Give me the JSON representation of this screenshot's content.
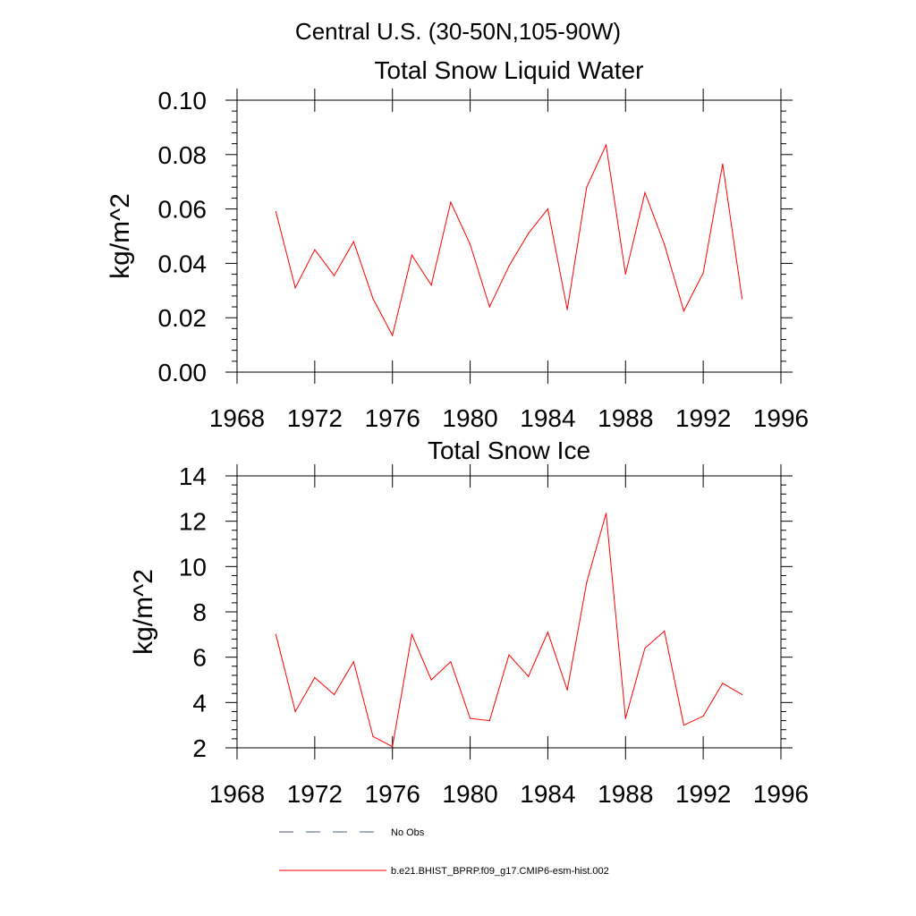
{
  "page_title": "Central U.S. (30-50N,105-90W)",
  "colors": {
    "model_line": "#ff0000",
    "obs_line": "#4a5a8a",
    "axis": "#000000"
  },
  "legend": {
    "entries": [
      {
        "label": "No Obs",
        "style": "dashed"
      },
      {
        "label": "b.e21.BHIST_BPRP.f09_g17.CMIP6-esm-hist.002",
        "style": "solid"
      }
    ]
  },
  "chart_data": [
    {
      "type": "line",
      "title": "Total Snow Liquid Water",
      "xlabel": "",
      "ylabel": "kg/m^2",
      "xlim": [
        1968,
        1996
      ],
      "ylim": [
        0,
        0.1
      ],
      "x_ticks": [
        1968,
        1972,
        1976,
        1980,
        1984,
        1988,
        1992,
        1996
      ],
      "y_ticks": [
        0,
        0.02,
        0.04,
        0.06,
        0.08,
        0.1
      ],
      "y_tick_labels": [
        "0.00",
        "0.02",
        "0.04",
        "0.06",
        "0.08",
        "0.10"
      ],
      "x": [
        1970,
        1971,
        1972,
        1973,
        1974,
        1975,
        1976,
        1977,
        1978,
        1979,
        1980,
        1981,
        1982,
        1983,
        1984,
        1985,
        1986,
        1987,
        1988,
        1989,
        1990,
        1991,
        1992,
        1993,
        1994
      ],
      "series": [
        {
          "name": "b.e21.BHIST_BPRP.f09_g17.CMIP6-esm-hist.002",
          "values": [
            0.059,
            0.031,
            0.045,
            0.0355,
            0.048,
            0.027,
            0.0135,
            0.043,
            0.032,
            0.0625,
            0.047,
            0.024,
            0.039,
            0.051,
            0.06,
            0.023,
            0.068,
            0.0835,
            0.036,
            0.066,
            0.047,
            0.0225,
            0.0365,
            0.0765,
            0.027
          ]
        }
      ]
    },
    {
      "type": "line",
      "title": "Total Snow Ice",
      "xlabel": "",
      "ylabel": "kg/m^2",
      "xlim": [
        1968,
        1996
      ],
      "ylim": [
        2,
        14
      ],
      "x_ticks": [
        1968,
        1972,
        1976,
        1980,
        1984,
        1988,
        1992,
        1996
      ],
      "y_ticks": [
        2,
        4,
        6,
        8,
        10,
        12,
        14
      ],
      "y_tick_labels": [
        "2",
        "4",
        "6",
        "8",
        "10",
        "12",
        "14"
      ],
      "x": [
        1970,
        1971,
        1972,
        1973,
        1974,
        1975,
        1976,
        1977,
        1978,
        1979,
        1980,
        1981,
        1982,
        1983,
        1984,
        1985,
        1986,
        1987,
        1988,
        1989,
        1990,
        1991,
        1992,
        1993,
        1994
      ],
      "series": [
        {
          "name": "b.e21.BHIST_BPRP.f09_g17.CMIP6-esm-hist.002",
          "values": [
            7.0,
            3.6,
            5.1,
            4.35,
            5.8,
            2.5,
            2.05,
            7.0,
            5.0,
            5.8,
            3.3,
            3.2,
            6.1,
            5.15,
            7.1,
            4.55,
            9.3,
            12.35,
            3.3,
            6.4,
            7.15,
            3.0,
            3.4,
            4.85,
            4.35
          ]
        }
      ]
    }
  ]
}
